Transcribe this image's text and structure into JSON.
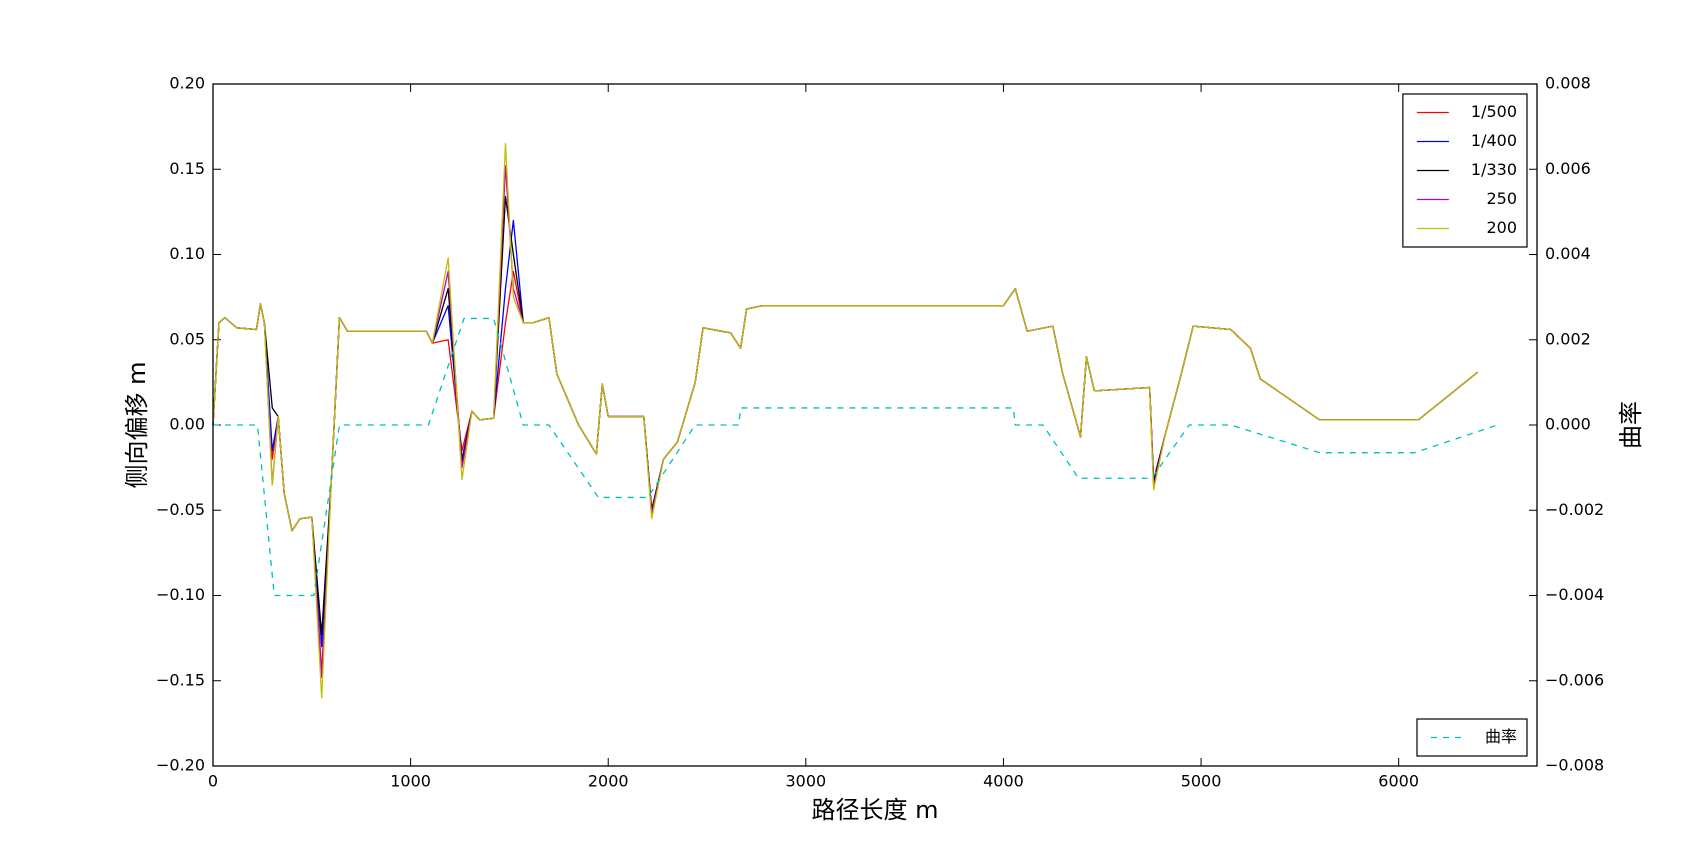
{
  "chart_data": {
    "type": "line",
    "xlabel": "路径长度 m",
    "ylabel": "侧向偏移 m",
    "y2label": "曲率",
    "xlim": [
      0,
      6700
    ],
    "xticks": [
      0,
      1000,
      2000,
      3000,
      4000,
      5000,
      6000
    ],
    "ylim": [
      -0.2,
      0.2
    ],
    "yticks": [
      {
        "value": -0.2,
        "label": "−0.20"
      },
      {
        "value": -0.15,
        "label": "−0.15"
      },
      {
        "value": -0.1,
        "label": "−0.10"
      },
      {
        "value": -0.05,
        "label": "−0.05"
      },
      {
        "value": 0,
        "label": "0.00"
      },
      {
        "value": 0.05,
        "label": "0.05"
      },
      {
        "value": 0.1,
        "label": "0.10"
      },
      {
        "value": 0.15,
        "label": "0.15"
      },
      {
        "value": 0.2,
        "label": "0.20"
      }
    ],
    "y2lim": [
      -0.008,
      0.008
    ],
    "y2ticks": [
      {
        "value": -0.008,
        "label": "−0.008"
      },
      {
        "value": -0.006,
        "label": "−0.006"
      },
      {
        "value": -0.004,
        "label": "−0.004"
      },
      {
        "value": -0.002,
        "label": "−0.002"
      },
      {
        "value": 0,
        "label": "0.000"
      },
      0.002,
      0.004,
      0.006,
      0.008
    ],
    "grid": false,
    "legend": "upper right",
    "y2_legend": "lower right",
    "x": [
      0,
      30,
      60,
      120,
      220,
      240,
      260,
      300,
      330,
      360,
      400,
      440,
      500,
      550,
      600,
      640,
      680,
      1080,
      1110,
      1190,
      1260,
      1310,
      1350,
      1420,
      1480,
      1520,
      1570,
      1620,
      1700,
      1740,
      1850,
      1940,
      1970,
      2000,
      2180,
      2220,
      2280,
      2350,
      2440,
      2480,
      2620,
      2670,
      2700,
      2780,
      4000,
      4060,
      4120,
      4250,
      4300,
      4390,
      4420,
      4460,
      4740,
      4760,
      4820,
      4900,
      4960,
      5150,
      5250,
      5300,
      5600,
      6100,
      6400
    ],
    "series": [
      {
        "name": "1/500",
        "color": "#ff0000",
        "values": [
          0.0,
          0.06,
          0.063,
          0.057,
          0.056,
          0.071,
          0.06,
          -0.02,
          0.005,
          -0.04,
          -0.062,
          -0.055,
          -0.054,
          -0.145,
          -0.03,
          0.063,
          0.055,
          0.055,
          0.048,
          0.05,
          -0.015,
          0.008,
          0.003,
          0.004,
          0.06,
          0.09,
          0.06,
          0.06,
          0.063,
          0.03,
          0.0,
          -0.017,
          0.024,
          0.005,
          0.005,
          -0.05,
          -0.02,
          -0.01,
          0.025,
          0.057,
          0.054,
          0.045,
          0.068,
          0.07,
          0.07,
          0.08,
          0.055,
          0.058,
          0.03,
          -0.007,
          0.04,
          0.02,
          0.022,
          -0.032,
          -0.005,
          0.03,
          0.058,
          0.056,
          0.045,
          0.027,
          0.003,
          0.003,
          0.031
        ]
      },
      {
        "name": "1/400",
        "color": "#0000ff",
        "values": [
          0.0,
          0.06,
          0.063,
          0.057,
          0.056,
          0.071,
          0.06,
          -0.015,
          0.005,
          -0.04,
          -0.062,
          -0.055,
          -0.054,
          -0.13,
          -0.03,
          0.063,
          0.055,
          0.055,
          0.048,
          0.07,
          -0.02,
          0.008,
          0.003,
          0.004,
          0.08,
          0.12,
          0.06,
          0.06,
          0.063,
          0.03,
          0.0,
          -0.017,
          0.024,
          0.005,
          0.005,
          -0.05,
          -0.02,
          -0.01,
          0.025,
          0.057,
          0.054,
          0.045,
          0.068,
          0.07,
          0.07,
          0.08,
          0.055,
          0.058,
          0.03,
          -0.007,
          0.04,
          0.02,
          0.022,
          -0.033,
          -0.005,
          0.03,
          0.058,
          0.056,
          0.045,
          0.027,
          0.003,
          0.003,
          0.031
        ]
      },
      {
        "name": "1/330",
        "color": "#000000",
        "values": [
          0.0,
          0.06,
          0.063,
          0.057,
          0.056,
          0.071,
          0.06,
          0.01,
          0.005,
          -0.04,
          -0.062,
          -0.055,
          -0.054,
          -0.123,
          -0.03,
          0.063,
          0.055,
          0.055,
          0.048,
          0.08,
          -0.022,
          0.008,
          0.003,
          0.004,
          0.134,
          0.1,
          0.06,
          0.06,
          0.063,
          0.03,
          0.0,
          -0.017,
          0.024,
          0.005,
          0.005,
          -0.05,
          -0.02,
          -0.01,
          0.025,
          0.057,
          0.054,
          0.045,
          0.068,
          0.07,
          0.07,
          0.08,
          0.055,
          0.058,
          0.03,
          -0.007,
          0.04,
          0.02,
          0.022,
          -0.034,
          -0.005,
          0.03,
          0.058,
          0.056,
          0.045,
          0.027,
          0.003,
          0.003,
          0.031
        ]
      },
      {
        "name": "250",
        "color": "#bf00bf",
        "values": [
          0.0,
          0.06,
          0.063,
          0.057,
          0.056,
          0.071,
          0.06,
          -0.035,
          0.005,
          -0.04,
          -0.062,
          -0.055,
          -0.054,
          -0.148,
          -0.03,
          0.063,
          0.055,
          0.055,
          0.048,
          0.09,
          -0.025,
          0.008,
          0.003,
          0.004,
          0.152,
          0.08,
          0.06,
          0.06,
          0.063,
          0.03,
          0.0,
          -0.017,
          0.024,
          0.005,
          0.005,
          -0.052,
          -0.02,
          -0.01,
          0.025,
          0.057,
          0.054,
          0.045,
          0.068,
          0.07,
          0.07,
          0.08,
          0.055,
          0.058,
          0.03,
          -0.007,
          0.04,
          0.02,
          0.022,
          -0.036,
          -0.005,
          0.03,
          0.058,
          0.056,
          0.045,
          0.027,
          0.003,
          0.003,
          0.031
        ]
      },
      {
        "name": "200",
        "color": "#bfbf00",
        "values": [
          0.0,
          0.06,
          0.063,
          0.057,
          0.056,
          0.071,
          0.06,
          -0.035,
          0.005,
          -0.04,
          -0.062,
          -0.055,
          -0.054,
          -0.16,
          -0.03,
          0.063,
          0.055,
          0.055,
          0.048,
          0.098,
          -0.032,
          0.008,
          0.003,
          0.004,
          0.165,
          0.075,
          0.06,
          0.06,
          0.063,
          0.03,
          0.0,
          -0.017,
          0.024,
          0.005,
          0.005,
          -0.055,
          -0.02,
          -0.01,
          0.025,
          0.057,
          0.054,
          0.045,
          0.068,
          0.07,
          0.07,
          0.08,
          0.055,
          0.058,
          0.03,
          -0.007,
          0.04,
          0.02,
          0.022,
          -0.038,
          -0.005,
          0.03,
          0.058,
          0.056,
          0.045,
          0.027,
          0.003,
          0.003,
          0.031
        ]
      },
      {
        "name": "曲率",
        "color": "#00bfbf",
        "axis": "y2",
        "linestyle": "dashed",
        "x": [
          0,
          225,
          310,
          510,
          640,
          1090,
          1270,
          1420,
          1570,
          1700,
          1950,
          2200,
          2440,
          2660,
          2670,
          4050,
          4060,
          4200,
          4380,
          4750,
          4940,
          5150,
          5600,
          6080,
          6500
        ],
        "values": [
          0,
          0,
          -0.004,
          -0.004,
          0,
          0,
          0.0025,
          0.0025,
          0,
          0,
          -0.0017,
          -0.0017,
          0,
          0,
          0.0004,
          0.0004,
          0,
          0,
          -0.00125,
          -0.00125,
          0,
          0,
          -0.00065,
          -0.00065,
          0
        ]
      }
    ]
  }
}
